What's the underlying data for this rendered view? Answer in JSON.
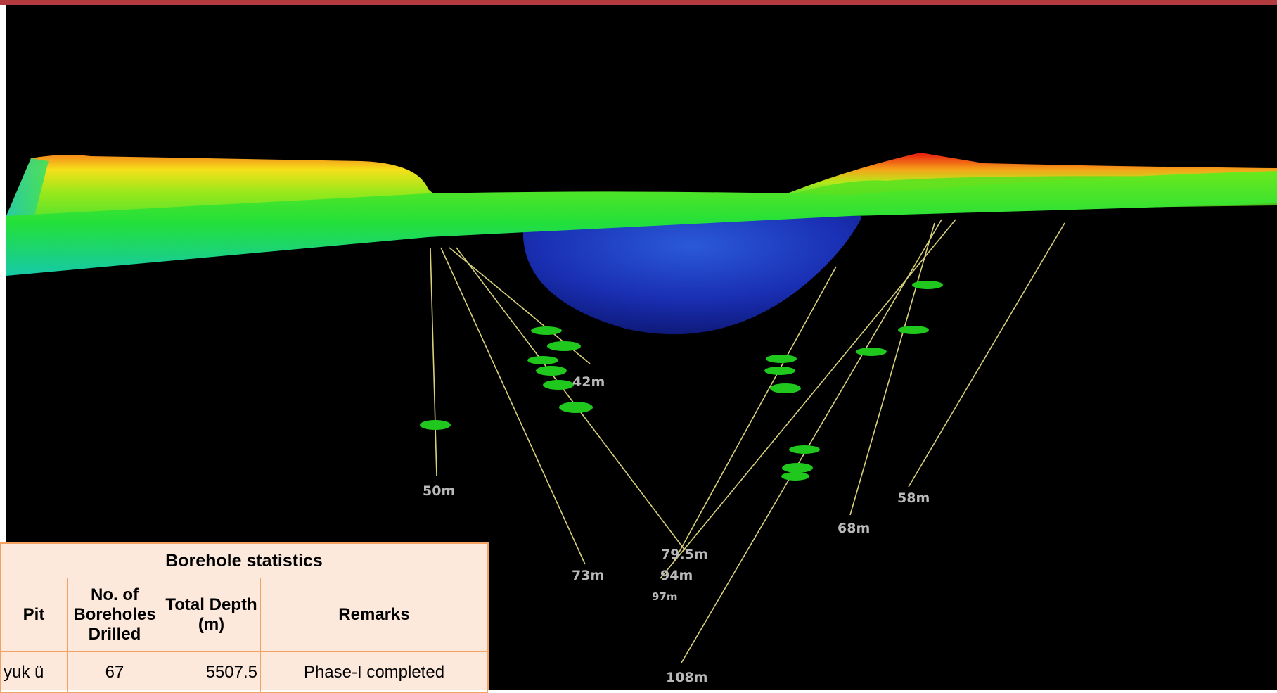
{
  "visual": {
    "frame_color": "#b33a3f",
    "viewport_background": "#000000",
    "terrain_colors": [
      "#1fb7c9",
      "#17e04a",
      "#6ee01a",
      "#f5e21a",
      "#f57a1a",
      "#e8160f"
    ],
    "pit_color": "#1a2fb4",
    "borehole_line_color": "#d8d17a",
    "ore_intercept_color": "#20c81e"
  },
  "depth_labels": {
    "d42": "42m",
    "d50": "50m",
    "d58": "58m",
    "d68": "68m",
    "d73": "73m",
    "d79": "79.5m",
    "d94": "94m",
    "d97": "97m",
    "d108": "108m"
  },
  "stats_table": {
    "title": "Borehole statistics",
    "headers": {
      "pit": "Pit",
      "boreholes": "No. of Boreholes Drilled",
      "depth": "Total Depth (m)",
      "remarks": "Remarks"
    },
    "rows": [
      {
        "pit": "yuk ü",
        "boreholes": "67",
        "depth": "5507.5",
        "remarks": "Phase-I completed"
      }
    ]
  }
}
